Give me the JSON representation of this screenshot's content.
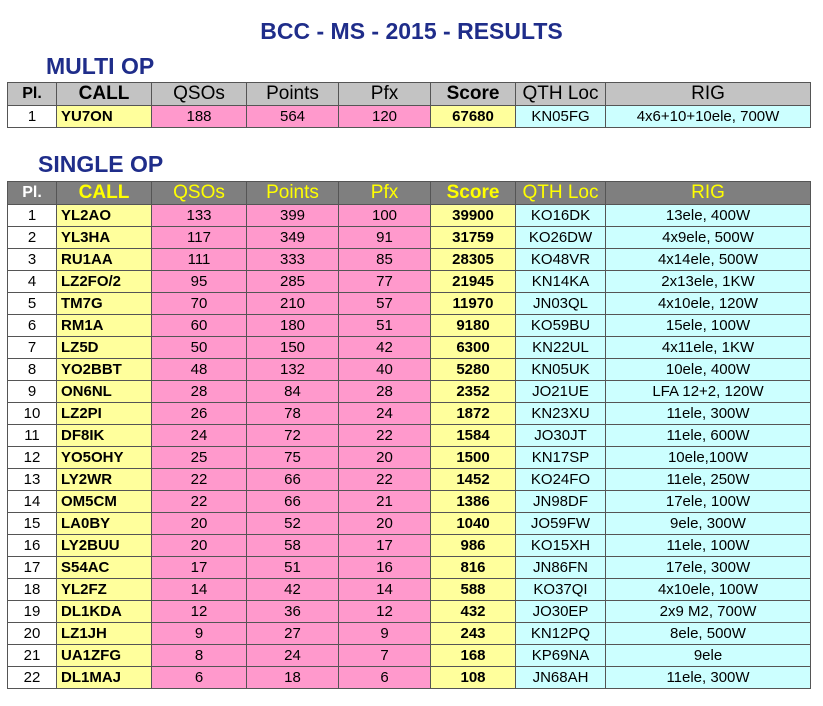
{
  "title": "BCC - MS - 2015 - RESULTS",
  "multi_op": {
    "heading": "MULTI OP",
    "columns": [
      "Pl.",
      "CALL",
      "QSOs",
      "Points",
      "Pfx",
      "Score",
      "QTH Loc",
      "RIG"
    ],
    "rows": [
      {
        "pl": "1",
        "call": "YU7ON",
        "qsos": "188",
        "points": "564",
        "pfx": "120",
        "score": "67680",
        "loc": "KN05FG",
        "rig": "4x6+10+10ele, 700W"
      }
    ]
  },
  "single_op": {
    "heading": "SINGLE OP",
    "columns": [
      "Pl.",
      "CALL",
      "QSOs",
      "Points",
      "Pfx",
      "Score",
      "QTH Loc",
      "RIG"
    ],
    "rows": [
      {
        "pl": "1",
        "call": "YL2AO",
        "qsos": "133",
        "points": "399",
        "pfx": "100",
        "score": "39900",
        "loc": "KO16DK",
        "rig": "13ele, 400W"
      },
      {
        "pl": "2",
        "call": "YL3HA",
        "qsos": "117",
        "points": "349",
        "pfx": "91",
        "score": "31759",
        "loc": "KO26DW",
        "rig": "4x9ele, 500W"
      },
      {
        "pl": "3",
        "call": "RU1AA",
        "qsos": "111",
        "points": "333",
        "pfx": "85",
        "score": "28305",
        "loc": "KO48VR",
        "rig": "4x14ele, 500W"
      },
      {
        "pl": "4",
        "call": "LZ2FO/2",
        "qsos": "95",
        "points": "285",
        "pfx": "77",
        "score": "21945",
        "loc": "KN14KA",
        "rig": "2x13ele, 1KW"
      },
      {
        "pl": "5",
        "call": "TM7G",
        "qsos": "70",
        "points": "210",
        "pfx": "57",
        "score": "11970",
        "loc": "JN03QL",
        "rig": "4x10ele, 120W"
      },
      {
        "pl": "6",
        "call": "RM1A",
        "qsos": "60",
        "points": "180",
        "pfx": "51",
        "score": "9180",
        "loc": "KO59BU",
        "rig": "15ele, 100W"
      },
      {
        "pl": "7",
        "call": "LZ5D",
        "qsos": "50",
        "points": "150",
        "pfx": "42",
        "score": "6300",
        "loc": "KN22UL",
        "rig": "4x11ele, 1KW"
      },
      {
        "pl": "8",
        "call": "YO2BBT",
        "qsos": "48",
        "points": "132",
        "pfx": "40",
        "score": "5280",
        "loc": "KN05UK",
        "rig": "10ele, 400W"
      },
      {
        "pl": "9",
        "call": "ON6NL",
        "qsos": "28",
        "points": "84",
        "pfx": "28",
        "score": "2352",
        "loc": "JO21UE",
        "rig": "LFA 12+2, 120W"
      },
      {
        "pl": "10",
        "call": "LZ2PI",
        "qsos": "26",
        "points": "78",
        "pfx": "24",
        "score": "1872",
        "loc": "KN23XU",
        "rig": "11ele, 300W"
      },
      {
        "pl": "11",
        "call": "DF8IK",
        "qsos": "24",
        "points": "72",
        "pfx": "22",
        "score": "1584",
        "loc": "JO30JT",
        "rig": "11ele, 600W"
      },
      {
        "pl": "12",
        "call": "YO5OHY",
        "qsos": "25",
        "points": "75",
        "pfx": "20",
        "score": "1500",
        "loc": "KN17SP",
        "rig": "10ele,100W"
      },
      {
        "pl": "13",
        "call": "LY2WR",
        "qsos": "22",
        "points": "66",
        "pfx": "22",
        "score": "1452",
        "loc": "KO24FO",
        "rig": "11ele, 250W"
      },
      {
        "pl": "14",
        "call": "OM5CM",
        "qsos": "22",
        "points": "66",
        "pfx": "21",
        "score": "1386",
        "loc": "JN98DF",
        "rig": "17ele, 100W"
      },
      {
        "pl": "15",
        "call": "LA0BY",
        "qsos": "20",
        "points": "52",
        "pfx": "20",
        "score": "1040",
        "loc": "JO59FW",
        "rig": "9ele, 300W"
      },
      {
        "pl": "16",
        "call": "LY2BUU",
        "qsos": "20",
        "points": "58",
        "pfx": "17",
        "score": "986",
        "loc": "KO15XH",
        "rig": "11ele, 100W"
      },
      {
        "pl": "17",
        "call": "S54AC",
        "qsos": "17",
        "points": "51",
        "pfx": "16",
        "score": "816",
        "loc": "JN86FN",
        "rig": "17ele, 300W"
      },
      {
        "pl": "18",
        "call": "YL2FZ",
        "qsos": "14",
        "points": "42",
        "pfx": "14",
        "score": "588",
        "loc": "KO37QI",
        "rig": "4x10ele, 100W"
      },
      {
        "pl": "19",
        "call": "DL1KDA",
        "qsos": "12",
        "points": "36",
        "pfx": "12",
        "score": "432",
        "loc": "JO30EP",
        "rig": "2x9 M2, 700W"
      },
      {
        "pl": "20",
        "call": "LZ1JH",
        "qsos": "9",
        "points": "27",
        "pfx": "9",
        "score": "243",
        "loc": "KN12PQ",
        "rig": "8ele, 500W"
      },
      {
        "pl": "21",
        "call": "UA1ZFG",
        "qsos": "8",
        "points": "24",
        "pfx": "7",
        "score": "168",
        "loc": "KP69NA",
        "rig": "9ele"
      },
      {
        "pl": "22",
        "call": "DL1MAJ",
        "qsos": "6",
        "points": "18",
        "pfx": "6",
        "score": "108",
        "loc": "JN68AH",
        "rig": "11ele, 300W"
      }
    ]
  },
  "colors": {
    "title": "#1f2d8a",
    "call_score_bg": "#ffff9c",
    "numbers_bg": "#ff99cc",
    "loc_rig_bg": "#ccffff",
    "single_header_bg": "#7f7f7f",
    "single_header_text": "#ffff00",
    "multi_header_bg": "#c3c3c3"
  }
}
